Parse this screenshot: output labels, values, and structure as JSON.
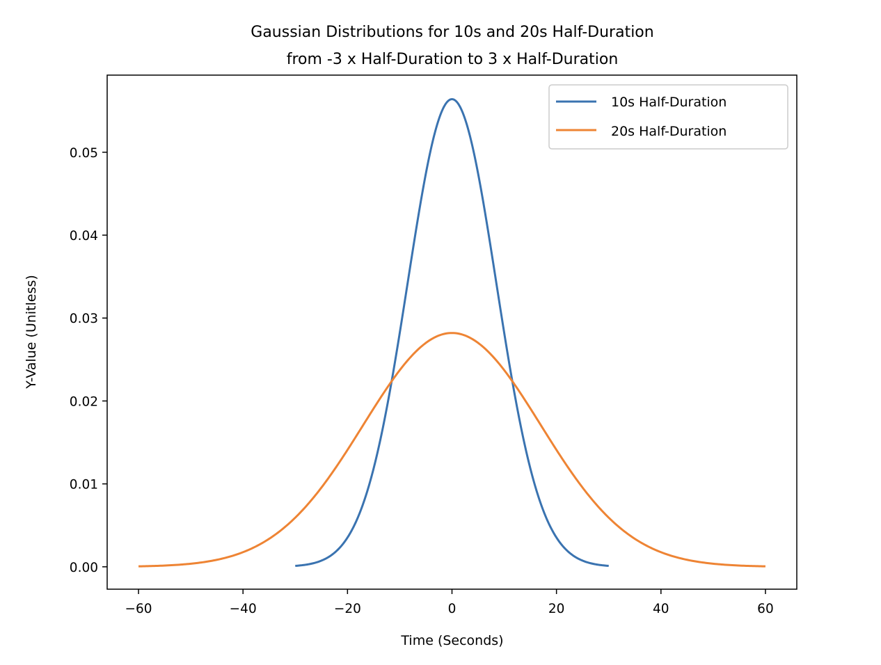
{
  "chart_data": {
    "type": "line",
    "title_lines": [
      "Gaussian Distributions for 10s and 20s Half-Duration",
      "from -3 x Half-Duration to 3 x Half-Duration"
    ],
    "xlabel": "Time (Seconds)",
    "ylabel": "Y-Value (Unitless)",
    "xlim": [
      -66,
      66
    ],
    "ylim": [
      -0.0027,
      0.0593
    ],
    "x_ticks": [
      -60,
      -40,
      -20,
      0,
      20,
      40,
      60
    ],
    "x_tick_labels": [
      "−60",
      "−40",
      "−20",
      "0",
      "20",
      "40",
      "60"
    ],
    "y_ticks": [
      0.0,
      0.01,
      0.02,
      0.03,
      0.04,
      0.05
    ],
    "y_tick_labels": [
      "0.00",
      "0.01",
      "0.02",
      "0.03",
      "0.04",
      "0.05"
    ],
    "grid": false,
    "legend": {
      "placement": "top-right",
      "entries": [
        "10s Half-Duration",
        "20s Half-Duration"
      ]
    },
    "series": [
      {
        "name": "10s Half-Duration",
        "color": "#3a73b0",
        "half_duration": 10,
        "x_range": [
          -30,
          30
        ],
        "peak": 0.0564
      },
      {
        "name": "20s Half-Duration",
        "color": "#ee8434",
        "half_duration": 20,
        "x_range": [
          -60,
          60
        ],
        "peak": 0.0282
      }
    ]
  }
}
